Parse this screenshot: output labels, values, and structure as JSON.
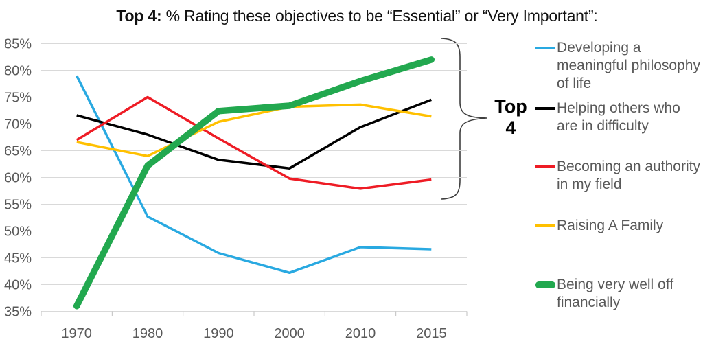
{
  "chart_data": {
    "type": "line",
    "title_bold": "Top 4:",
    "title_rest": " % Rating these objectives to be “Essential” or “Very Important”:",
    "categories": [
      "1970",
      "1980",
      "1990",
      "2000",
      "2010",
      "2015"
    ],
    "series": [
      {
        "name": "Developing a meaningful philosophy of life",
        "color": "#29A9E1",
        "width": 3.5,
        "values": [
          79,
          52.7,
          45.9,
          42.2,
          47,
          46.6
        ]
      },
      {
        "name": "Helping others who are in difficulty",
        "color": "#000000",
        "width": 3.5,
        "values": [
          71.6,
          68,
          63.3,
          61.7,
          69.4,
          74.5
        ]
      },
      {
        "name": "Becoming an authority in my field",
        "color": "#EE1C25",
        "width": 3.5,
        "values": [
          67,
          75,
          67.3,
          59.8,
          57.9,
          59.6
        ]
      },
      {
        "name": "Raising A Family",
        "color": "#FFC000",
        "width": 3.5,
        "values": [
          66.6,
          64,
          70.4,
          73.2,
          73.6,
          71.4
        ]
      },
      {
        "name": "Being very well off financially",
        "color": "#22A84F",
        "width": 9.5,
        "values": [
          36,
          62.2,
          72.4,
          73.4,
          78,
          82
        ]
      }
    ],
    "ylim": [
      35,
      85
    ],
    "ytick_step": 5,
    "ytick_suffix": "%",
    "grid": true,
    "grid_color": "#D9D9D9",
    "axis_text_color": "#595959",
    "legend_position": "right"
  },
  "annotation": {
    "line1": "Top",
    "line2": "4"
  }
}
